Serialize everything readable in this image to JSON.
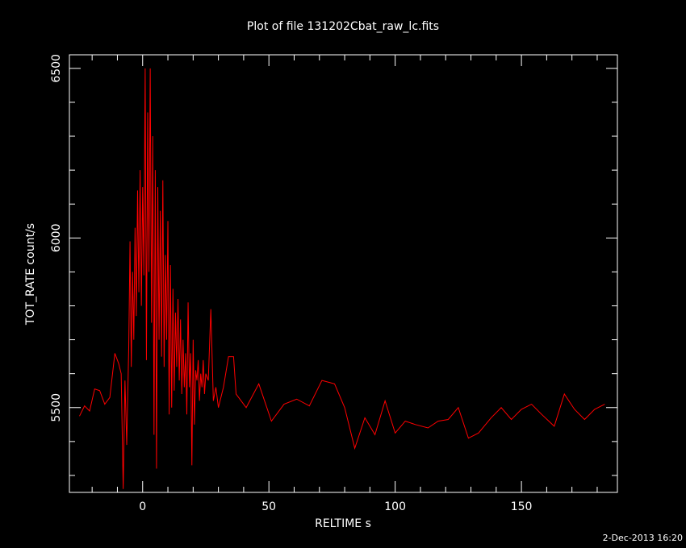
{
  "chart_data": {
    "type": "line",
    "title": "Plot of file 131202Cbat_raw_lc.fits",
    "xlabel": "RELTIME  s",
    "ylabel": "TOT_RATE  count/s",
    "footer": "2-Dec-2013 16:20",
    "xlim": [
      -29,
      188
    ],
    "ylim": [
      5250,
      6540
    ],
    "xticks": [
      0,
      50,
      100,
      150
    ],
    "yticks": [
      5500,
      6000,
      6500
    ],
    "xminorticks": [
      -20,
      -10,
      10,
      20,
      30,
      40,
      60,
      70,
      80,
      90,
      110,
      120,
      130,
      140,
      160,
      170,
      180
    ],
    "yminorticks": [
      5300,
      5400,
      5600,
      5700,
      5800,
      5900,
      6100,
      6200,
      6300,
      6400
    ],
    "series": [
      {
        "name": "TOT_RATE",
        "color": "#ff0000",
        "x": [
          -25,
          -23,
          -21,
          -19,
          -17,
          -15,
          -13,
          -11,
          -9.5,
          -8.5,
          -7.7,
          -7,
          -6.3,
          -5.5,
          -5,
          -4.5,
          -4,
          -3.5,
          -3,
          -2.5,
          -2,
          -1.5,
          -1,
          -0.5,
          0,
          0.5,
          1,
          1.5,
          2,
          2.5,
          3,
          3.5,
          4,
          4.5,
          5,
          5.5,
          6,
          6.5,
          7,
          7.5,
          8,
          8.5,
          9,
          9.5,
          10,
          10.5,
          11,
          11.5,
          12,
          12.5,
          13,
          13.5,
          14,
          14.5,
          15,
          15.5,
          16,
          16.5,
          17,
          17.5,
          18,
          18.5,
          19,
          19.5,
          20,
          20.5,
          21,
          21.5,
          22,
          22.5,
          23,
          23.5,
          24,
          24.5,
          25,
          26,
          27,
          28,
          29,
          30,
          32,
          34,
          36,
          37,
          41,
          46,
          51,
          56,
          61,
          66,
          71,
          76,
          80,
          84,
          88,
          92,
          96,
          100,
          104,
          108,
          113,
          117,
          121,
          125,
          129,
          133,
          138,
          142,
          146,
          150,
          154,
          158,
          163,
          167,
          171,
          175,
          179,
          183
        ],
        "values": [
          5475,
          5505,
          5490,
          5555,
          5550,
          5510,
          5530,
          5660,
          5630,
          5600,
          5260,
          5580,
          5390,
          5680,
          5990,
          5620,
          5900,
          5700,
          6030,
          5770,
          6140,
          5840,
          6200,
          5800,
          6150,
          5890,
          6500,
          5640,
          6370,
          5900,
          6500,
          5750,
          6300,
          5420,
          6200,
          5320,
          6150,
          5700,
          6080,
          5650,
          6170,
          5620,
          5950,
          5700,
          6050,
          5480,
          5920,
          5500,
          5850,
          5550,
          5780,
          5620,
          5820,
          5580,
          5760,
          5540,
          5700,
          5560,
          5660,
          5480,
          5810,
          5560,
          5660,
          5330,
          5700,
          5450,
          5610,
          5580,
          5640,
          5520,
          5600,
          5560,
          5640,
          5540,
          5600,
          5580,
          5790,
          5520,
          5560,
          5500,
          5560,
          5650,
          5650,
          5540,
          5500,
          5570,
          5460,
          5510,
          5525,
          5505,
          5580,
          5570,
          5500,
          5380,
          5470,
          5420,
          5520,
          5425,
          5460,
          5450,
          5440,
          5460,
          5465,
          5500,
          5410,
          5425,
          5470,
          5500,
          5465,
          5495,
          5510,
          5480,
          5445,
          5540,
          5495,
          5465,
          5495,
          5510
        ]
      }
    ]
  }
}
